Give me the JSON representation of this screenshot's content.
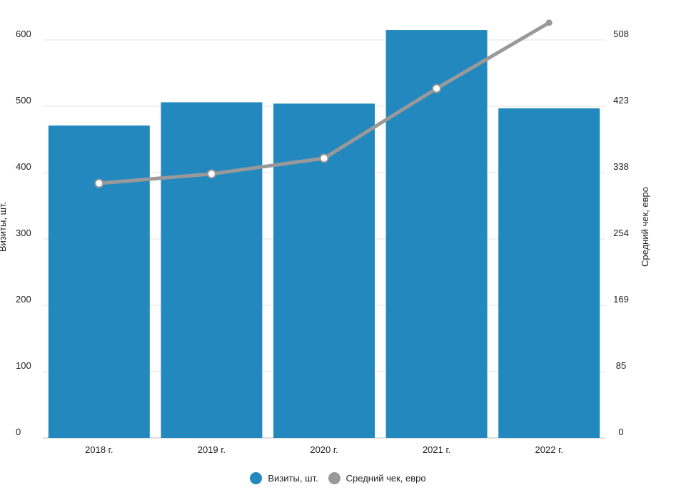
{
  "chart_data": {
    "type": "bar",
    "categories": [
      "2018 г.",
      "2019 г.",
      "2020 г.",
      "2021 г.",
      "2022 г."
    ],
    "series": [
      {
        "name": "Визиты, шт.",
        "type": "bar",
        "axis": "left",
        "color": "#2388be",
        "values": [
          471,
          506,
          504,
          615,
          497
        ]
      },
      {
        "name": "Средний чек, евро",
        "type": "line",
        "axis": "right",
        "color": "#999999",
        "values": [
          325,
          337,
          357,
          446,
          530
        ]
      }
    ],
    "y_left": {
      "label": "Визиты, шт.",
      "range": [
        0,
        600
      ],
      "ticks": [
        "0",
        "100",
        "200",
        "300",
        "400",
        "500",
        "600"
      ]
    },
    "y_right": {
      "label": "Средний чек, евро",
      "range": [
        0,
        508
      ],
      "ticks": [
        "0",
        "85",
        "169",
        "254",
        "338",
        "423",
        "508"
      ]
    },
    "grid": true,
    "legend_position": "bottom"
  }
}
